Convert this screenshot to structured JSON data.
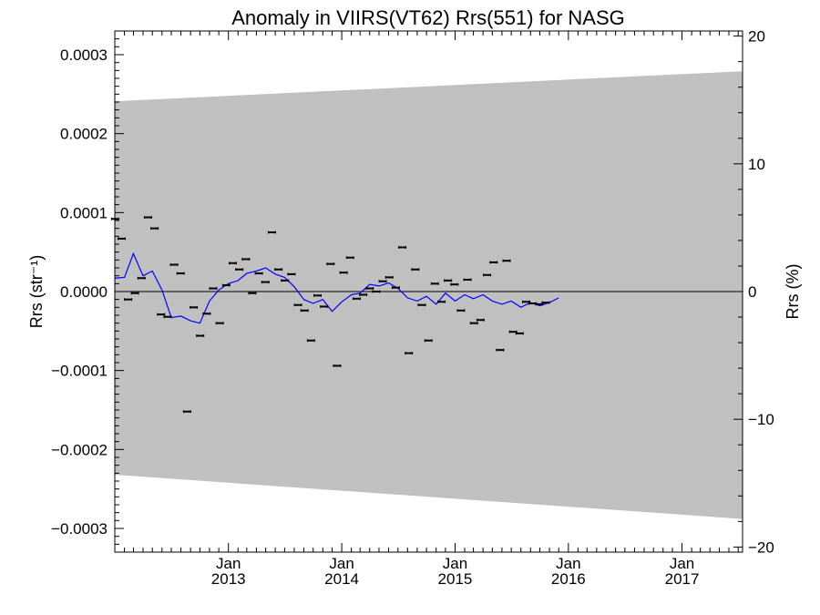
{
  "chart_data": {
    "type": "scatter",
    "title": "Anomaly in VIIRS(VT62) Rrs(551) for NASG",
    "ylabel_left": "Rrs (str⁻¹)",
    "ylabel_right": "Rrs (%)",
    "xlabel": "",
    "grid": false,
    "legend": "none",
    "x_range": [
      "2012-01-01",
      "2017-07-15"
    ],
    "ylim_left": [
      -0.00033,
      0.00033
    ],
    "ylim_right": [
      -20.4,
      20.4
    ],
    "x_ticks": [
      {
        "month": "Jan",
        "year": "2013",
        "date": "2013-01-01"
      },
      {
        "month": "Jan",
        "year": "2014",
        "date": "2014-01-01"
      },
      {
        "month": "Jan",
        "year": "2015",
        "date": "2015-01-01"
      },
      {
        "month": "Jan",
        "year": "2016",
        "date": "2016-01-01"
      },
      {
        "month": "Jan",
        "year": "2017",
        "date": "2017-01-01"
      }
    ],
    "y_ticks_left": [
      {
        "value": 0.0003,
        "label": "0.0003"
      },
      {
        "value": 0.0002,
        "label": "0.0002"
      },
      {
        "value": 0.0001,
        "label": "0.0001"
      },
      {
        "value": 0.0,
        "label": "0.0000"
      },
      {
        "value": -0.0001,
        "label": "−0.0001"
      },
      {
        "value": -0.0002,
        "label": "−0.0002"
      },
      {
        "value": -0.0003,
        "label": "−0.0003"
      }
    ],
    "y_ticks_right": [
      {
        "value": 20,
        "label": "20"
      },
      {
        "value": 10,
        "label": "10"
      },
      {
        "value": 0,
        "label": "0"
      },
      {
        "value": -10,
        "label": "−10"
      },
      {
        "value": -20,
        "label": "−20"
      }
    ],
    "colors": {
      "band": "#c0c0c0",
      "line": "#0000ff",
      "points": "#000000",
      "zero_line": "#000000"
    },
    "uncertainty_band": {
      "start": {
        "x": "2012-01-01",
        "upper": 0.000241,
        "lower": -0.000232
      },
      "end": {
        "x": "2017-07-15",
        "upper": 0.000279,
        "lower": -0.000288
      }
    },
    "series": [
      {
        "name": "",
        "type": "scatter",
        "points": [
          [
            "2012-01-02",
            9.2e-05
          ],
          [
            "2012-01-23",
            6.7e-05
          ],
          [
            "2012-02-13",
            -1e-05
          ],
          [
            "2012-03-06",
            -2e-06
          ],
          [
            "2012-03-27",
            1.7e-05
          ],
          [
            "2012-04-17",
            9.4e-05
          ],
          [
            "2012-05-08",
            8e-05
          ],
          [
            "2012-05-29",
            -2.9e-05
          ],
          [
            "2012-06-19",
            -3.2e-05
          ],
          [
            "2012-07-10",
            3.4e-05
          ],
          [
            "2012-07-31",
            2.3e-05
          ],
          [
            "2012-08-21",
            -0.000152
          ],
          [
            "2012-09-11",
            -2e-05
          ],
          [
            "2012-10-02",
            -5.6e-05
          ],
          [
            "2012-10-23",
            -2.8e-05
          ],
          [
            "2012-11-13",
            4e-06
          ],
          [
            "2012-12-04",
            -4e-05
          ],
          [
            "2012-12-25",
            8e-06
          ],
          [
            "2013-01-15",
            3.6e-05
          ],
          [
            "2013-02-05",
            2.8e-05
          ],
          [
            "2013-02-26",
            4.1e-05
          ],
          [
            "2013-03-19",
            -2e-06
          ],
          [
            "2013-04-09",
            2.3e-05
          ],
          [
            "2013-04-30",
            1.2e-05
          ],
          [
            "2013-05-21",
            7.5e-05
          ],
          [
            "2013-06-11",
            2.8e-05
          ],
          [
            "2013-07-02",
            1.4e-05
          ],
          [
            "2013-07-23",
            2.2e-05
          ],
          [
            "2013-08-13",
            -1.7e-05
          ],
          [
            "2013-09-03",
            -2.4e-05
          ],
          [
            "2013-09-24",
            -6.2e-05
          ],
          [
            "2013-10-15",
            -5e-06
          ],
          [
            "2013-11-05",
            -1.9e-05
          ],
          [
            "2013-11-26",
            3.5e-05
          ],
          [
            "2013-12-17",
            -9.4e-05
          ],
          [
            "2014-01-07",
            2.4e-05
          ],
          [
            "2014-01-28",
            4.3e-05
          ],
          [
            "2014-02-18",
            -9e-06
          ],
          [
            "2014-03-11",
            -4e-06
          ],
          [
            "2014-04-01",
            4e-06
          ],
          [
            "2014-04-22",
            0.0
          ],
          [
            "2014-05-13",
            1.3e-05
          ],
          [
            "2014-06-03",
            1.8e-05
          ],
          [
            "2014-06-24",
            5e-06
          ],
          [
            "2014-07-15",
            5.6e-05
          ],
          [
            "2014-08-05",
            -7.8e-05
          ],
          [
            "2014-08-26",
            2.8e-05
          ],
          [
            "2014-09-16",
            -1.7e-05
          ],
          [
            "2014-10-07",
            -6.2e-05
          ],
          [
            "2014-10-28",
            1e-05
          ],
          [
            "2014-11-18",
            -1.3e-05
          ],
          [
            "2014-12-09",
            1.4e-05
          ],
          [
            "2014-12-30",
            9e-06
          ],
          [
            "2015-01-20",
            -2.4e-05
          ],
          [
            "2015-02-10",
            1.5e-05
          ],
          [
            "2015-03-03",
            -4e-05
          ],
          [
            "2015-03-24",
            -3.6e-05
          ],
          [
            "2015-04-14",
            2.1e-05
          ],
          [
            "2015-05-05",
            3.7e-05
          ],
          [
            "2015-05-26",
            -7.4e-05
          ],
          [
            "2015-06-16",
            3.9e-05
          ],
          [
            "2015-07-07",
            -5.1e-05
          ],
          [
            "2015-07-28",
            -5.3e-05
          ],
          [
            "2015-08-18",
            -1.3e-05
          ],
          [
            "2015-09-08",
            -1.5e-05
          ],
          [
            "2015-09-29",
            -1.6e-05
          ],
          [
            "2015-10-20",
            -1.4e-05
          ]
        ]
      },
      {
        "name": "",
        "type": "line",
        "points": [
          [
            "2012-01-01",
            1.7e-05
          ],
          [
            "2012-02-01",
            1.8e-05
          ],
          [
            "2012-03-01",
            4.8e-05
          ],
          [
            "2012-04-01",
            2e-05
          ],
          [
            "2012-05-01",
            2.6e-05
          ],
          [
            "2012-06-01",
            2e-06
          ],
          [
            "2012-07-01",
            -3.3e-05
          ],
          [
            "2012-08-01",
            -3.1e-05
          ],
          [
            "2012-09-01",
            -3.7e-05
          ],
          [
            "2012-10-01",
            -4e-05
          ],
          [
            "2012-11-01",
            -1.2e-05
          ],
          [
            "2012-12-01",
            2e-06
          ],
          [
            "2013-01-01",
            1e-05
          ],
          [
            "2013-02-01",
            1.4e-05
          ],
          [
            "2013-03-01",
            2.3e-05
          ],
          [
            "2013-04-01",
            2.6e-05
          ],
          [
            "2013-05-01",
            3e-05
          ],
          [
            "2013-06-01",
            2.2e-05
          ],
          [
            "2013-07-01",
            1.8e-05
          ],
          [
            "2013-08-01",
            6e-06
          ],
          [
            "2013-09-01",
            -1e-05
          ],
          [
            "2013-10-01",
            -1.5e-05
          ],
          [
            "2013-11-01",
            -1e-05
          ],
          [
            "2013-12-01",
            -2.5e-05
          ],
          [
            "2014-01-01",
            -1.3e-05
          ],
          [
            "2014-02-01",
            -4e-06
          ],
          [
            "2014-03-01",
            -2e-06
          ],
          [
            "2014-04-01",
            9e-06
          ],
          [
            "2014-05-01",
            7e-06
          ],
          [
            "2014-06-01",
            1.1e-05
          ],
          [
            "2014-07-01",
            4e-06
          ],
          [
            "2014-08-01",
            -8e-06
          ],
          [
            "2014-09-01",
            -1.2e-05
          ],
          [
            "2014-10-01",
            -6e-06
          ],
          [
            "2014-11-01",
            -1.6e-05
          ],
          [
            "2014-12-01",
            -2e-06
          ],
          [
            "2015-01-01",
            -1.2e-05
          ],
          [
            "2015-02-01",
            -4e-06
          ],
          [
            "2015-03-01",
            -9e-06
          ],
          [
            "2015-04-01",
            -4e-06
          ],
          [
            "2015-05-01",
            -1.2e-05
          ],
          [
            "2015-06-01",
            -1.6e-05
          ],
          [
            "2015-07-01",
            -1.2e-05
          ],
          [
            "2015-08-01",
            -2e-05
          ],
          [
            "2015-09-01",
            -1.4e-05
          ],
          [
            "2015-10-01",
            -1.8e-05
          ],
          [
            "2015-11-01",
            -1.4e-05
          ],
          [
            "2015-12-01",
            -8e-06
          ]
        ]
      }
    ]
  }
}
